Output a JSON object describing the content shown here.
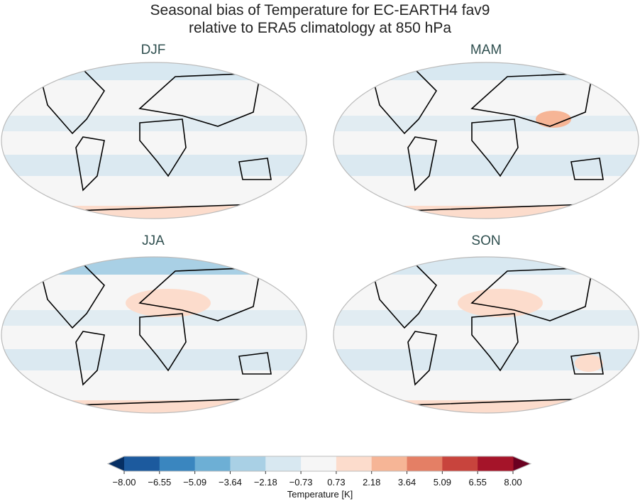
{
  "title": {
    "line1": "Seasonal bias of Temperature for EC-EARTH4 fav9",
    "line2": "relative to ERA5 climatology at 850 hPa"
  },
  "panels": [
    {
      "label": "DJF"
    },
    {
      "label": "MAM"
    },
    {
      "label": "JJA"
    },
    {
      "label": "SON"
    }
  ],
  "colorbar": {
    "label": "Temperature [K]",
    "ticks": [
      "−8.00",
      "−6.55",
      "−5.09",
      "−3.64",
      "−2.18",
      "−0.73",
      "0.73",
      "2.18",
      "3.64",
      "5.09",
      "6.55",
      "8.00"
    ],
    "colors": [
      "#1c5a9e",
      "#3a86bf",
      "#6dafd5",
      "#a9d0e5",
      "#d8e8f1",
      "#f6f6f6",
      "#fcdccc",
      "#f6b596",
      "#e47f65",
      "#c8443d",
      "#a51429"
    ],
    "under_color": "#062f63",
    "over_color": "#6a0020",
    "extend": "both"
  }
}
